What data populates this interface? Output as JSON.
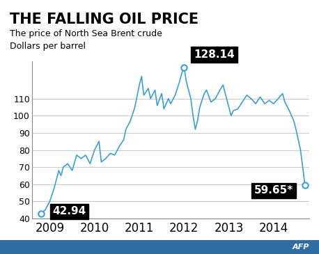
{
  "chart_data": {
    "type": "line",
    "title": "THE FALLING OIL PRICE",
    "subtitle": "The price of North Sea Brent crude",
    "y_label": "Dollars per barrel",
    "source": "AFP",
    "color": "#3a9fd4",
    "grid": true,
    "x": [
      2009.0,
      2009.05,
      2009.15,
      2009.25,
      2009.35,
      2009.45,
      2009.5,
      2009.55,
      2009.65,
      2009.75,
      2009.85,
      2009.95,
      2010.05,
      2010.15,
      2010.25,
      2010.35,
      2010.4,
      2010.5,
      2010.6,
      2010.7,
      2010.8,
      2010.9,
      2010.95,
      2011.05,
      2011.15,
      2011.25,
      2011.3,
      2011.35,
      2011.45,
      2011.5,
      2011.6,
      2011.65,
      2011.75,
      2011.8,
      2011.9,
      2011.95,
      2012.05,
      2012.15,
      2012.2,
      2012.25,
      2012.3,
      2012.4,
      2012.45,
      2012.5,
      2012.55,
      2012.6,
      2012.7,
      2012.75,
      2012.85,
      2012.95,
      2013.05,
      2013.12,
      2013.2,
      2013.3,
      2013.35,
      2013.45,
      2013.55,
      2013.65,
      2013.75,
      2013.85,
      2013.95,
      2014.05,
      2014.15,
      2014.25,
      2014.35,
      2014.45,
      2014.5,
      2014.6,
      2014.7,
      2014.75,
      2014.8,
      2014.85,
      2014.9,
      2014.95
    ],
    "values": [
      43,
      42.94,
      45,
      50,
      58,
      68,
      65,
      70,
      72,
      68,
      77,
      75,
      77,
      72,
      80,
      85,
      73,
      75,
      78,
      77,
      82,
      86,
      92,
      97,
      105,
      118,
      123,
      112,
      116,
      110,
      115,
      106,
      113,
      104,
      110,
      107,
      112,
      120,
      125,
      128.14,
      120,
      110,
      100,
      92,
      97,
      105,
      113,
      115,
      108,
      110,
      115,
      118,
      110,
      100,
      103,
      104,
      108,
      112,
      110,
      107,
      111,
      107,
      109,
      107,
      110,
      113,
      108,
      103,
      97,
      92,
      86,
      80,
      70,
      59.65
    ],
    "annotations": [
      {
        "text": "42.94",
        "x": 2009.05,
        "y": 42.94
      },
      {
        "text": "128.14",
        "x": 2012.25,
        "y": 128.14
      },
      {
        "text": "59.65*",
        "x": 2014.95,
        "y": 59.65
      }
    ],
    "xlim": [
      2008.85,
      2015.05
    ],
    "xticks": [
      {
        "value": 2009.25,
        "label": "2009"
      },
      {
        "value": 2010.25,
        "label": "2010"
      },
      {
        "value": 2011.25,
        "label": "2011"
      },
      {
        "value": 2012.25,
        "label": "2012"
      },
      {
        "value": 2013.25,
        "label": "2013"
      },
      {
        "value": 2014.25,
        "label": "2014"
      }
    ],
    "ylim": [
      40,
      132
    ],
    "yticks": [
      40,
      50,
      60,
      70,
      80,
      90,
      100,
      110
    ]
  }
}
